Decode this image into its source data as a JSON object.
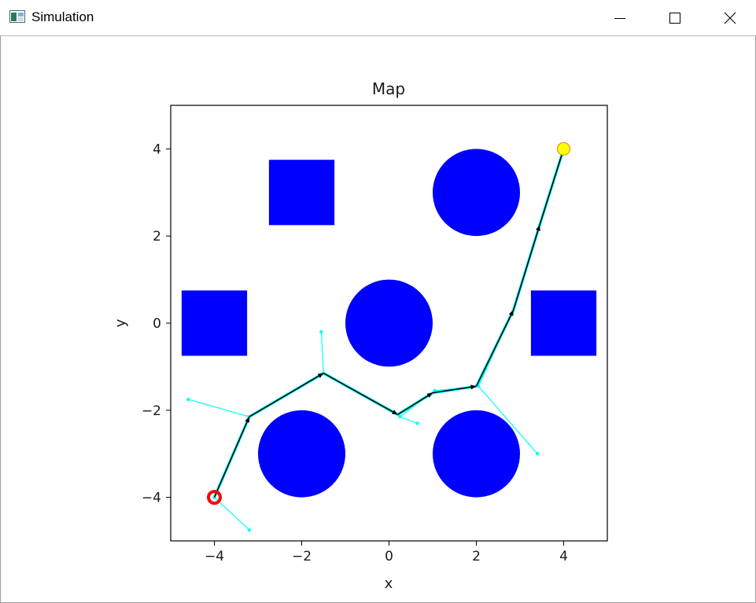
{
  "window": {
    "title": "Simulation",
    "controls": {
      "minimize": "minimize",
      "maximize": "maximize",
      "close": "close"
    }
  },
  "chart_data": {
    "type": "scatter",
    "title": "Map",
    "xlabel": "x",
    "ylabel": "y",
    "xlim": [
      -5,
      5
    ],
    "ylim": [
      -5,
      5
    ],
    "xticks": [
      -4,
      -2,
      0,
      2,
      4
    ],
    "yticks": [
      -4,
      -2,
      0,
      2,
      4
    ],
    "xtick_labels": [
      "−4",
      "−2",
      "0",
      "2",
      "4"
    ],
    "ytick_labels": [
      "−4",
      "−2",
      "0",
      "2",
      "4"
    ],
    "grid": false,
    "obstacles": {
      "color": "#0000ff",
      "circles": [
        {
          "x": 2,
          "y": 3,
          "r": 1
        },
        {
          "x": 0,
          "y": 0,
          "r": 1
        },
        {
          "x": -2,
          "y": -3,
          "r": 1
        },
        {
          "x": 2,
          "y": -3,
          "r": 1
        }
      ],
      "squares": [
        {
          "x": -2,
          "y": 3,
          "half": 0.75
        },
        {
          "x": -4,
          "y": 0,
          "half": 0.75
        },
        {
          "x": 4,
          "y": 0,
          "half": 0.75
        }
      ]
    },
    "start": {
      "x": -4,
      "y": -4,
      "color": "#ff0000"
    },
    "goal": {
      "x": 4,
      "y": 4,
      "color": "#ffff00"
    },
    "tree_color": "#00ffff",
    "path_color": "#000000",
    "tree_nodes": [
      {
        "x": -4,
        "y": -4
      },
      {
        "x": -3.2,
        "y": -4.75
      },
      {
        "x": -3.2,
        "y": -2.15
      },
      {
        "x": -4.6,
        "y": -1.75
      },
      {
        "x": -1.5,
        "y": -1.15
      },
      {
        "x": -1.55,
        "y": -0.2
      },
      {
        "x": 0.25,
        "y": -2.15
      },
      {
        "x": 0.65,
        "y": -2.3
      },
      {
        "x": 1.05,
        "y": -1.55
      },
      {
        "x": 2.05,
        "y": -1.45
      },
      {
        "x": 3.4,
        "y": -3.0
      },
      {
        "x": 2.85,
        "y": 0.3
      },
      {
        "x": 3.45,
        "y": 2.25
      },
      {
        "x": 4,
        "y": 4
      }
    ],
    "tree_edges": [
      [
        0,
        1
      ],
      [
        0,
        2
      ],
      [
        2,
        3
      ],
      [
        2,
        4
      ],
      [
        4,
        5
      ],
      [
        4,
        6
      ],
      [
        6,
        7
      ],
      [
        6,
        8
      ],
      [
        8,
        9
      ],
      [
        9,
        10
      ],
      [
        9,
        11
      ],
      [
        11,
        12
      ],
      [
        12,
        13
      ]
    ],
    "path": [
      {
        "x": -4,
        "y": -4
      },
      {
        "x": -3.2,
        "y": -2.15
      },
      {
        "x": -1.5,
        "y": -1.15
      },
      {
        "x": 0.2,
        "y": -2.1
      },
      {
        "x": 1.0,
        "y": -1.6
      },
      {
        "x": 2.0,
        "y": -1.45
      },
      {
        "x": 2.85,
        "y": 0.3
      },
      {
        "x": 3.45,
        "y": 2.25
      },
      {
        "x": 4,
        "y": 4
      }
    ]
  }
}
